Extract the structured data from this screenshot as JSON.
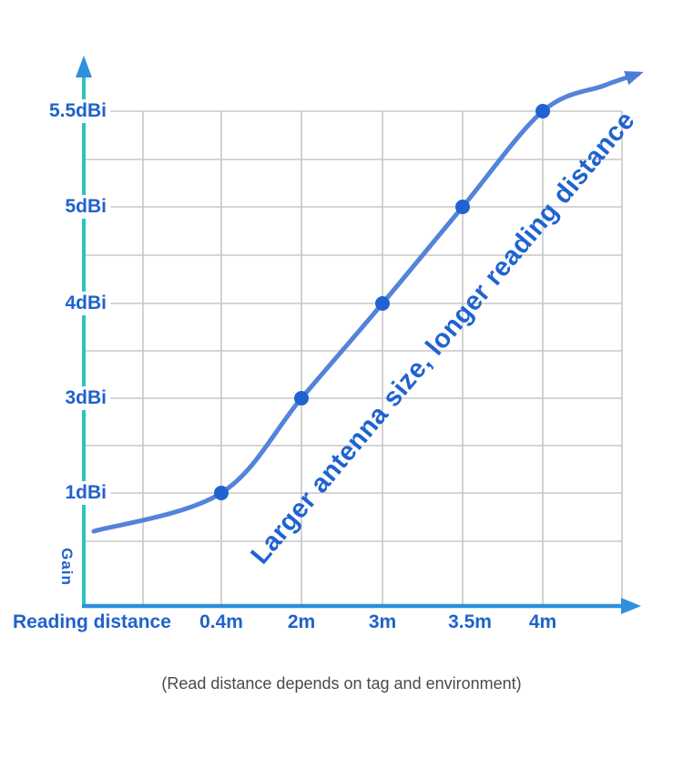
{
  "chart_data": {
    "type": "line",
    "title": "",
    "xlabel": "Reading distance",
    "ylabel": "Gain",
    "x_tick_labels": [
      "0.4m",
      "2m",
      "3m",
      "3.5m",
      "4m"
    ],
    "y_tick_labels": [
      "5.5dBi",
      "5dBi",
      "4dBi",
      "3dBi",
      "1dBi"
    ],
    "series": [
      {
        "name": "gain-vs-reading-distance",
        "x_m": [
          0.4,
          2,
          3,
          3.5,
          4
        ],
        "y_dBi": [
          1,
          3,
          4,
          5,
          5.5
        ]
      }
    ],
    "annotation": "Larger antenna size, longer reading distance",
    "caption": "(Read distance depends on tag and environment)",
    "grid": true,
    "legend": "none",
    "axis_note": "Both axes use evenly spaced category positions; y ticks 1,3,4,5,5.5 dBi are equally spaced; curve is an S-shape through the five marked points ending in an arrow."
  },
  "colors": {
    "y_axis_teal": "#2BC4BE",
    "x_axis_blue": "#2E90DD",
    "arrow_blue": "#2E90DD",
    "curve_blue": "#4A7CD9",
    "point_blue": "#1E63D0",
    "label_blue": "#2062CC",
    "annotation_blue": "#1F63D1",
    "grid_gray": "#C7C7C7",
    "caption_gray": "#4A4A4A"
  }
}
